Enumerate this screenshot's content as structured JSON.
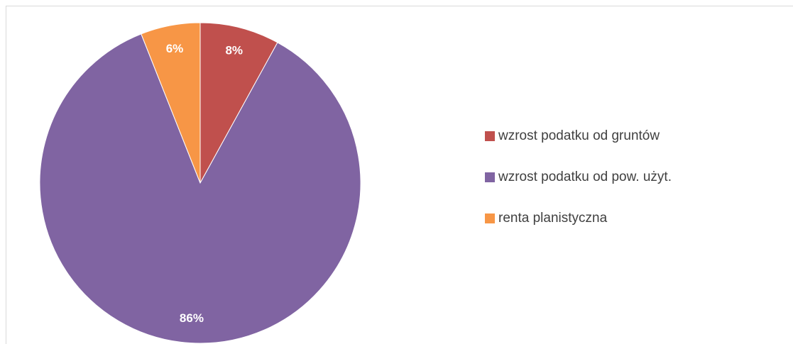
{
  "chart_data": {
    "type": "pie",
    "categories": [
      "wzrost podatku od gruntów",
      "wzrost podatku od pow. użyt.",
      "renta planistyczna"
    ],
    "values": [
      8,
      86,
      6
    ],
    "value_labels": [
      "8%",
      "86%",
      "6%"
    ],
    "colors": [
      "#c0504d",
      "#8064a2",
      "#f79646"
    ],
    "legend": "right"
  }
}
